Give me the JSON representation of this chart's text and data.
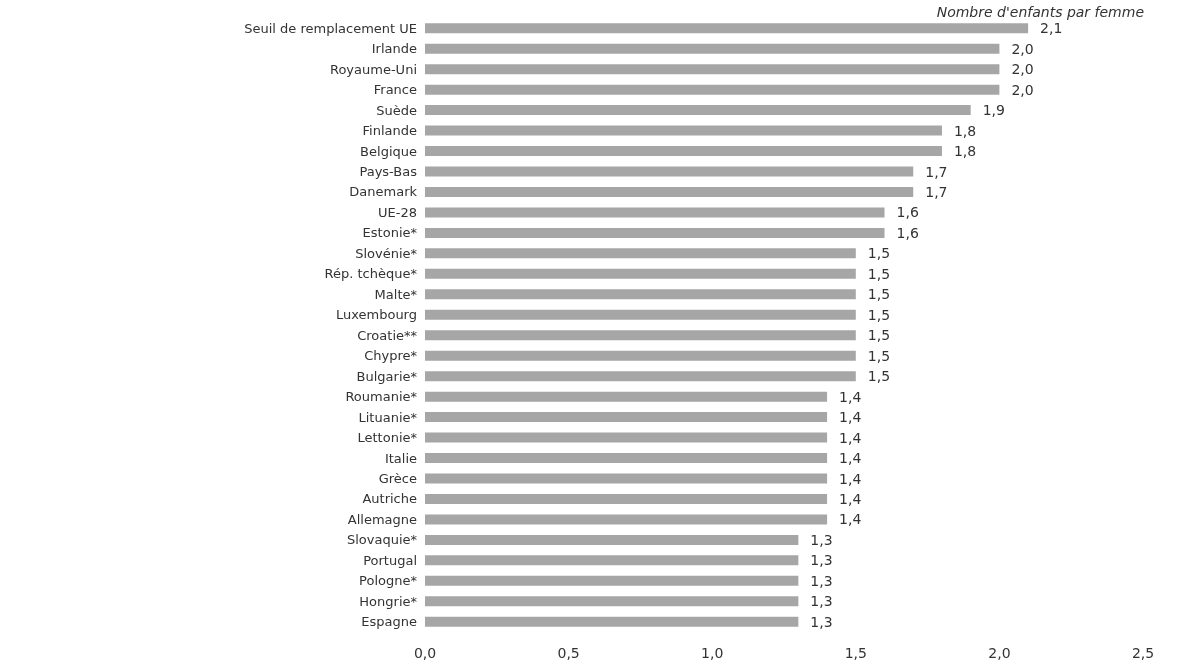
{
  "chart_data": {
    "type": "bar",
    "orientation": "horizontal",
    "xlabel": "Nombre d'enfants par femme",
    "categories": [
      "Seuil de remplacement UE",
      "Irlande",
      "Royaume-Uni",
      "France",
      "Suède",
      "Finlande",
      "Belgique",
      "Pays-Bas",
      "Danemark",
      "UE-28",
      "Estonie*",
      "Slovénie*",
      "Rép. tchèque*",
      "Malte*",
      "Luxembourg",
      "Croatie**",
      "Chypre*",
      "Bulgarie*",
      "Roumanie*",
      "Lituanie*",
      "Lettonie*",
      "Italie",
      "Grèce",
      "Autriche",
      "Allemagne",
      "Slovaquie*",
      "Portugal",
      "Pologne*",
      "Hongrie*",
      "Espagne"
    ],
    "values": [
      2.1,
      2.0,
      2.0,
      2.0,
      1.9,
      1.8,
      1.8,
      1.7,
      1.7,
      1.6,
      1.6,
      1.5,
      1.5,
      1.5,
      1.5,
      1.5,
      1.5,
      1.5,
      1.4,
      1.4,
      1.4,
      1.4,
      1.4,
      1.4,
      1.4,
      1.3,
      1.3,
      1.3,
      1.3,
      1.3
    ],
    "value_labels": [
      "2,1",
      "2,0",
      "2,0",
      "2,0",
      "1,9",
      "1,8",
      "1,8",
      "1,7",
      "1,7",
      "1,6",
      "1,6",
      "1,5",
      "1,5",
      "1,5",
      "1,5",
      "1,5",
      "1,5",
      "1,5",
      "1,4",
      "1,4",
      "1,4",
      "1,4",
      "1,4",
      "1,4",
      "1,4",
      "1,3",
      "1,3",
      "1,3",
      "1,3",
      "1,3"
    ],
    "color": "#a6a6a6",
    "xlim": [
      0,
      2.5
    ],
    "xticks": [
      {
        "value": 0,
        "label": "0,0"
      },
      {
        "value": 0.5,
        "label": "0,5"
      },
      {
        "value": 1,
        "label": "1,0"
      },
      {
        "value": 1.5,
        "label": "1,5"
      },
      {
        "value": 2,
        "label": "2,0"
      },
      {
        "value": 2.5,
        "label": "2,5"
      }
    ],
    "grid": false
  }
}
